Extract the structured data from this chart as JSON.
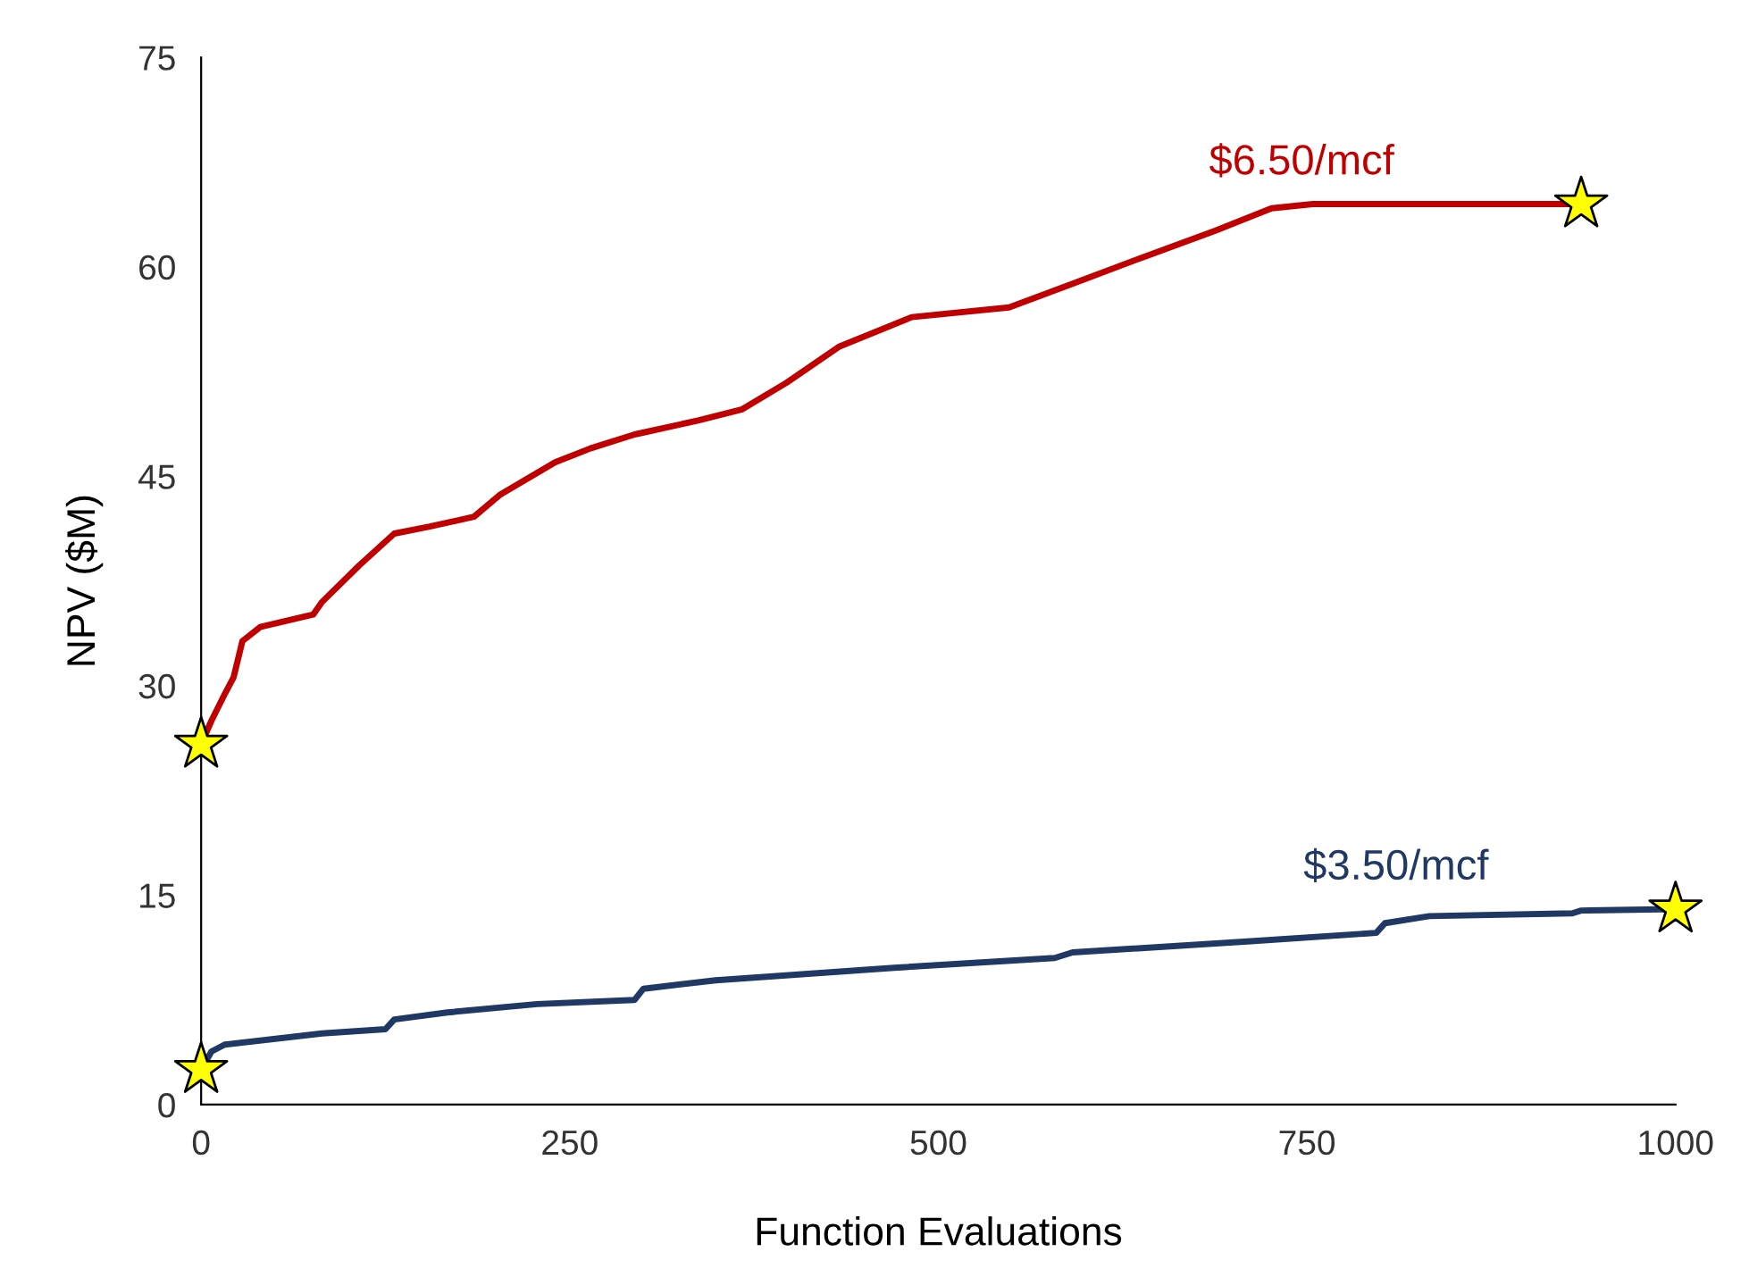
{
  "chart_data": {
    "type": "line",
    "xlabel": "Function Evaluations",
    "ylabel": "NPV ($M)",
    "xlim": [
      0,
      1000
    ],
    "xticks": [
      0,
      250,
      500,
      750,
      1000
    ],
    "ylim": [
      0,
      75
    ],
    "yticks": [
      0,
      15,
      30,
      45,
      60,
      75
    ],
    "grid": false,
    "legend": false,
    "series": [
      {
        "name": "$6.50/mcf",
        "color": "#c00000",
        "x": [
          0,
          7,
          16,
          22,
          28,
          40,
          76,
          82,
          107,
          131,
          155,
          185,
          203,
          240,
          264,
          294,
          337,
          367,
          397,
          433,
          482,
          548,
          591,
          639,
          688,
          726,
          754,
          936
        ],
        "values": [
          25.8,
          27.5,
          29.4,
          30.6,
          33.2,
          34.2,
          35.1,
          36,
          38.6,
          40.9,
          41.4,
          42.1,
          43.7,
          46,
          47,
          48,
          49,
          49.8,
          51.7,
          54.3,
          56.4,
          57.1,
          58.8,
          60.7,
          62.6,
          64.2,
          64.5,
          64.5
        ]
      },
      {
        "name": "$3.50/mcf",
        "color": "#1f3864",
        "x": [
          0,
          7,
          16,
          82,
          125,
          131,
          167,
          228,
          294,
          300,
          349,
          470,
          579,
          591,
          712,
          797,
          803,
          833,
          930,
          936,
          1000
        ],
        "values": [
          2.5,
          3.8,
          4.3,
          5.1,
          5.4,
          6.1,
          6.6,
          7.2,
          7.5,
          8.3,
          8.9,
          9.8,
          10.5,
          10.9,
          11.7,
          12.3,
          13,
          13.5,
          13.7,
          13.9,
          14
        ]
      },
      {
        "type": "scatter",
        "marker": "star",
        "color": "#ffff00",
        "x": [
          0,
          936,
          0,
          1000
        ],
        "values": [
          25.8,
          64.5,
          2.5,
          14
        ]
      }
    ]
  }
}
